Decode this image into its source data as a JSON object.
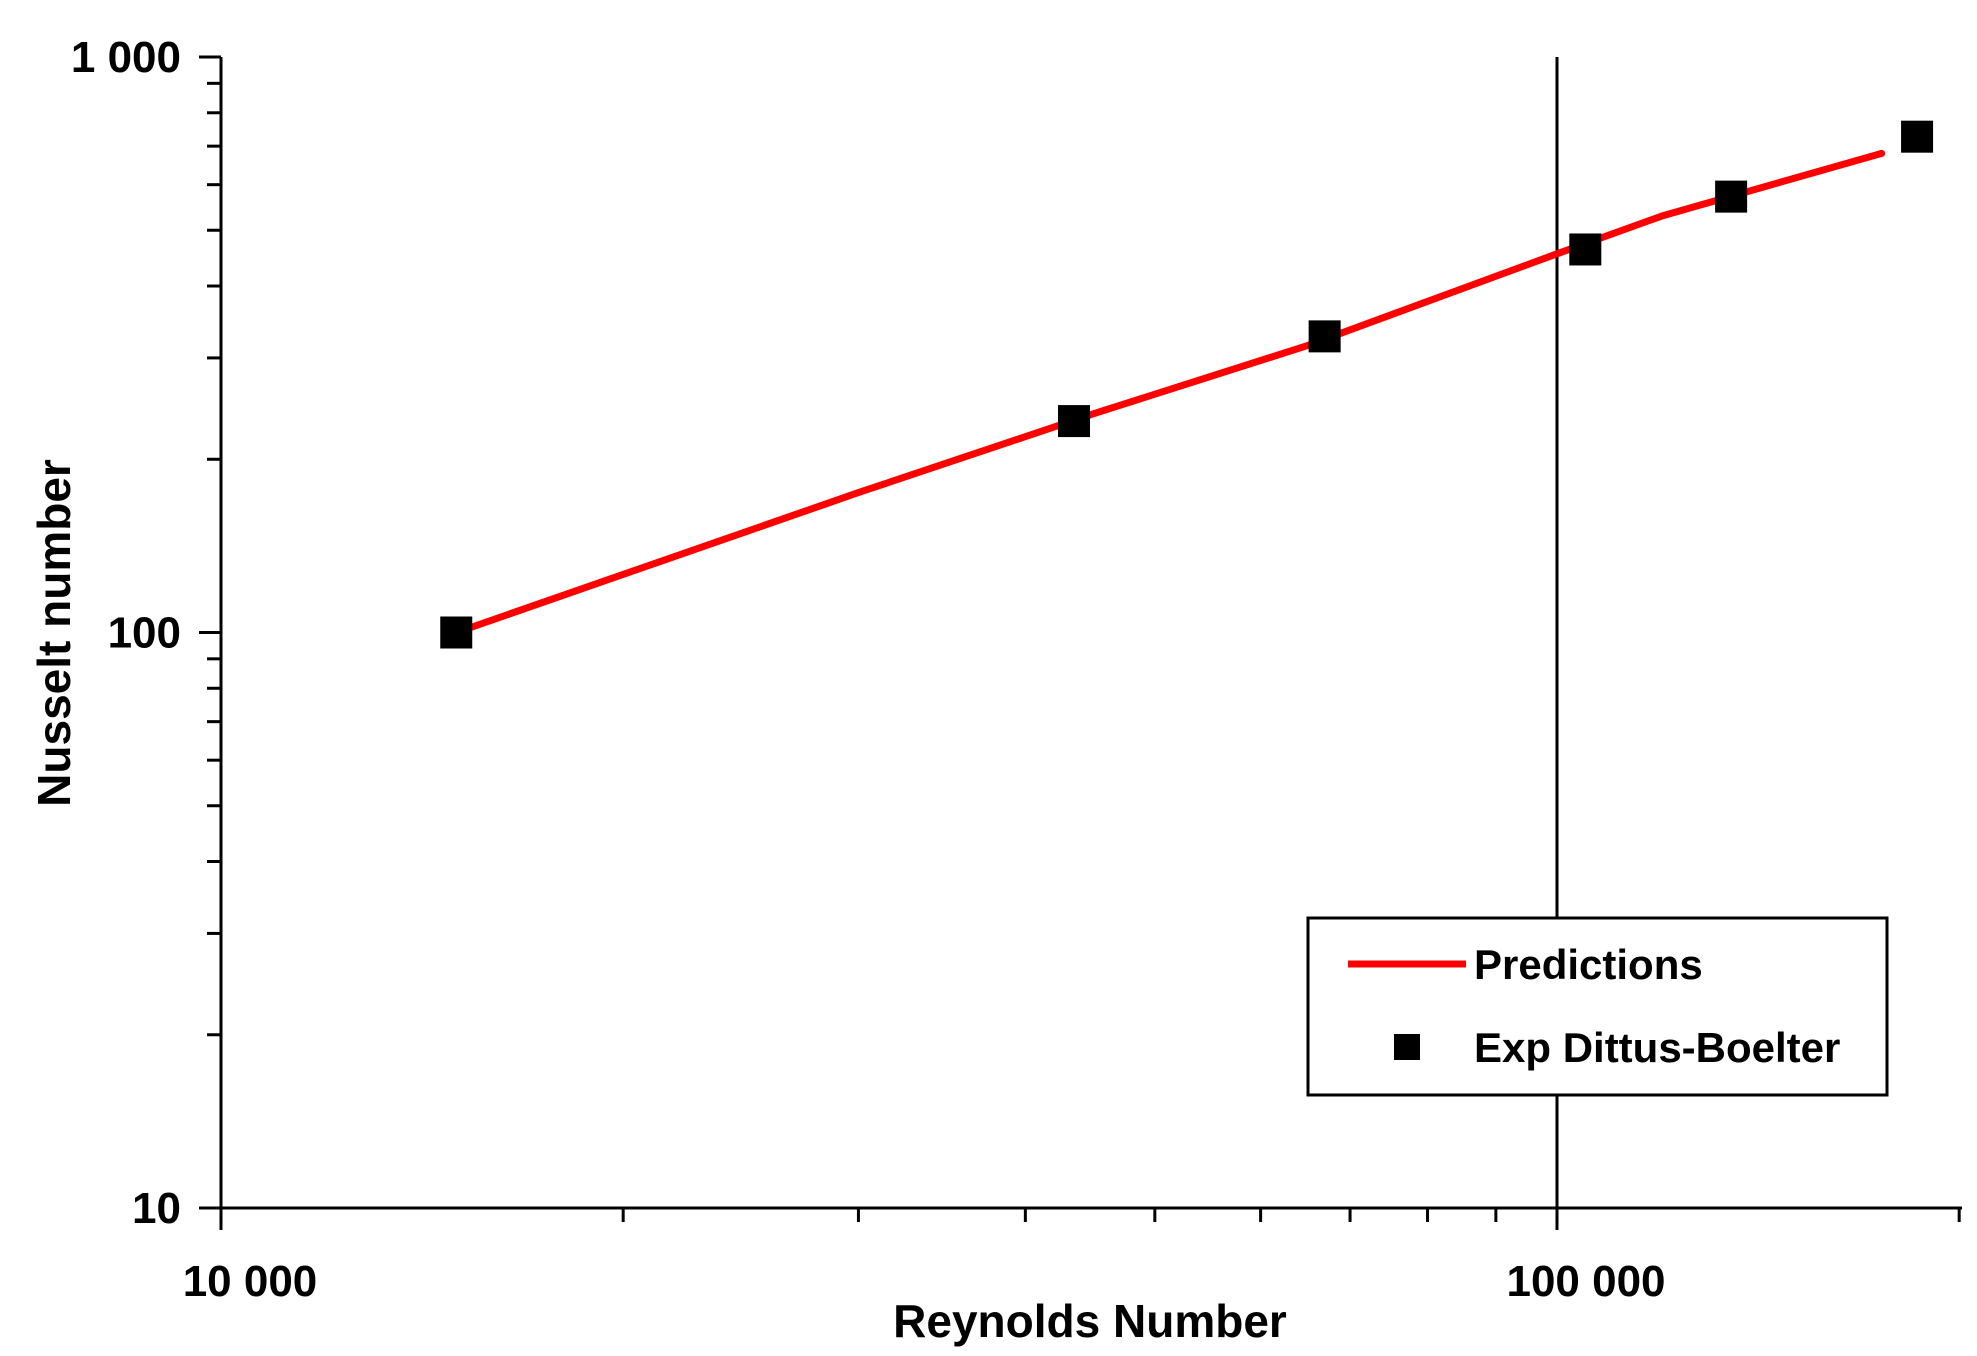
{
  "chart_data": {
    "type": "line",
    "xlabel": "Reynolds Number",
    "ylabel": "Nusselt number",
    "x_scale": "log",
    "y_scale": "log",
    "xlim": [
      10000,
      200000
    ],
    "ylim": [
      10,
      1000
    ],
    "x_ticks": [
      {
        "value": 10000,
        "label": "10 000"
      },
      {
        "value": 100000,
        "label": "100 000"
      }
    ],
    "y_ticks": [
      {
        "value": 10,
        "label": "10"
      },
      {
        "value": 100,
        "label": "100"
      },
      {
        "value": 1000,
        "label": "1 000"
      }
    ],
    "reference_line_x": 100000,
    "grid": false,
    "legend_position": "bottom-right",
    "series": [
      {
        "name": "Predictions",
        "kind": "line",
        "color": "#ff0000",
        "x": [
          15000,
          30000,
          45000,
          65000,
          100000,
          120000,
          175000
        ],
        "y": [
          100,
          175,
          240,
          315,
          455,
          530,
          680
        ]
      },
      {
        "name": "Exp Dittus-Boelter",
        "kind": "scatter",
        "marker": "square",
        "color": "#000000",
        "x": [
          15000,
          43500,
          67000,
          105000,
          135000,
          186000
        ],
        "y": [
          100,
          233,
          327,
          463,
          572,
          727
        ]
      }
    ]
  }
}
